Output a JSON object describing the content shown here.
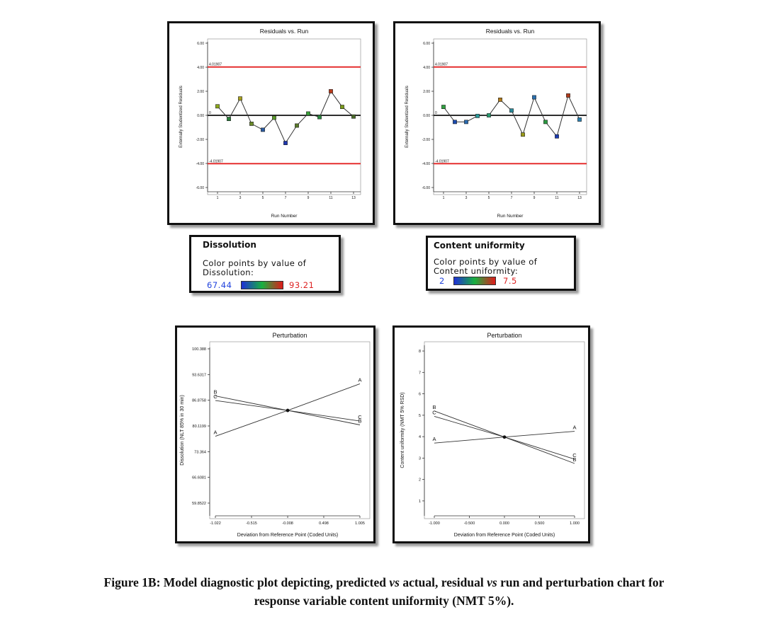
{
  "chart_data": [
    {
      "type": "scatter",
      "title": "Residuals vs. Run",
      "xlabel": "Run Number",
      "ylabel": "Externally Studentized Residuals",
      "xlim": [
        0.5,
        13.5
      ],
      "ylim": [
        -6,
        6
      ],
      "x_ticks": [
        "1",
        "3",
        "5",
        "7",
        "9",
        "11",
        "13"
      ],
      "y_ticks": [
        "6.00",
        "4.00",
        "2.00",
        "0.00",
        "-2.00",
        "-4.00",
        "-6.00"
      ],
      "limit_labels": {
        "upper": "4.01907",
        "lower": "-4.01907",
        "zero": "0"
      },
      "limits": {
        "upper": 4.01907,
        "lower": -4.01907
      },
      "x": [
        1,
        2,
        3,
        4,
        5,
        6,
        7,
        8,
        9,
        10,
        11,
        12,
        13
      ],
      "y": [
        0.75,
        -0.3,
        1.4,
        -0.7,
        -1.2,
        -0.2,
        -2.3,
        -0.85,
        0.15,
        -0.15,
        2.0,
        0.7,
        -0.1
      ],
      "point_colors": [
        "#8ca81a",
        "#2a7f3a",
        "#a8a020",
        "#6b8a2a",
        "#2a5aa0",
        "#5a9a2a",
        "#2038b0",
        "#5a7a2a",
        "#38a038",
        "#2a8a40",
        "#b83a1a",
        "#7a9a1a",
        "#4a6a2a"
      ],
      "grid": false
    },
    {
      "type": "scatter",
      "title": "Residuals vs. Run",
      "xlabel": "Run Number",
      "ylabel": "Externally Studentized Residuals",
      "xlim": [
        0.5,
        13.5
      ],
      "ylim": [
        -6,
        6
      ],
      "x_ticks": [
        "1",
        "3",
        "5",
        "7",
        "9",
        "11",
        "13"
      ],
      "y_ticks": [
        "6.00",
        "4.00",
        "2.00",
        "0.00",
        "-2.00",
        "-4.00",
        "-6.00"
      ],
      "limit_labels": {
        "upper": "4.01907",
        "lower": "-4.01907",
        "zero": "0"
      },
      "limits": {
        "upper": 4.01907,
        "lower": -4.01907
      },
      "x": [
        1,
        2,
        3,
        4,
        5,
        6,
        7,
        8,
        9,
        10,
        11,
        12,
        13
      ],
      "y": [
        0.7,
        -0.55,
        -0.55,
        -0.05,
        0.0,
        1.3,
        0.4,
        -1.6,
        1.5,
        -0.55,
        -1.75,
        1.65,
        -0.35
      ],
      "point_colors": [
        "#30a040",
        "#1a4ab0",
        "#2a6ab0",
        "#2a9a9a",
        "#2a9a70",
        "#b07a1a",
        "#2a8a9a",
        "#9a9a1a",
        "#2a70b0",
        "#2a9a40",
        "#1a3ab0",
        "#b03a1a",
        "#2a80b0"
      ],
      "grid": false
    },
    {
      "type": "line",
      "title": "Perturbation",
      "xlabel": "Deviation from Reference Point (Coded Units)",
      "ylabel": "Dissolution (NLT 85% in 30 min)",
      "xlim": [
        -1.022,
        1.005
      ],
      "ylim": [
        59.8522,
        100.388
      ],
      "x_ticks": [
        "-1.022",
        "-0.515",
        "-0.008",
        "0.498",
        "1.005"
      ],
      "y_ticks": [
        "100.388",
        "93.6317",
        "86.8758",
        "80.1199",
        "73.364",
        "66.6081",
        "59.8522"
      ],
      "series": [
        {
          "name": "A",
          "x": [
            -1.022,
            -0.008,
            1.005
          ],
          "y": [
            77.4,
            84.2,
            91.2
          ]
        },
        {
          "name": "B",
          "x": [
            -1.022,
            -0.008,
            1.005
          ],
          "y": [
            88.0,
            84.2,
            80.4
          ]
        },
        {
          "name": "C",
          "x": [
            -1.022,
            -0.008,
            1.005
          ],
          "y": [
            86.8,
            84.2,
            81.4
          ]
        }
      ],
      "center_point": {
        "x": -0.008,
        "y": 84.2
      },
      "grid": false
    },
    {
      "type": "line",
      "title": "Perturbation",
      "xlabel": "Deviation from Reference Point (Coded Units)",
      "ylabel": "Content uniformity (NMT 5% RSD)",
      "xlim": [
        -1.0,
        1.0
      ],
      "ylim": [
        0.7,
        8.2
      ],
      "x_ticks": [
        "-1.000",
        "-0.500",
        "0.000",
        "0.500",
        "1.000"
      ],
      "y_ticks": [
        "8",
        "7",
        "6",
        "5",
        "4",
        "3",
        "2",
        "1"
      ],
      "series": [
        {
          "name": "A",
          "x": [
            -1.0,
            0.0,
            1.0
          ],
          "y": [
            3.7,
            3.98,
            4.25
          ]
        },
        {
          "name": "B",
          "x": [
            -1.0,
            0.0,
            1.0
          ],
          "y": [
            5.2,
            3.98,
            2.75
          ]
        },
        {
          "name": "C",
          "x": [
            -1.0,
            0.0,
            1.0
          ],
          "y": [
            4.95,
            3.98,
            2.95
          ]
        }
      ],
      "center_point": {
        "x": 0.0,
        "y": 3.98
      },
      "grid": false
    }
  ],
  "legends": [
    {
      "title": "Dissolution",
      "description_line1": "Color points by value of",
      "description_line2": "Dissolution:",
      "min": "67.44",
      "max": "93.21"
    },
    {
      "title": "Content uniformity",
      "description_line1": "Color points by value of",
      "description_line2": "Content uniformity:",
      "min": "2",
      "max": "7.5"
    }
  ],
  "colors": {
    "limit_line": "#e32222",
    "axis": "#111111",
    "series_line": "#333333",
    "gradient": [
      "#1f2fd6",
      "#18b040",
      "#e01a1a"
    ]
  },
  "caption": {
    "p1": "Figure 1B: Model diagnostic plot depicting, predicted ",
    "vs1": "vs",
    "p2": " actual, residual ",
    "vs2": "vs",
    "p3": " run and perturbation chart for",
    "line2": "response variable content uniformity (NMT 5%)."
  }
}
